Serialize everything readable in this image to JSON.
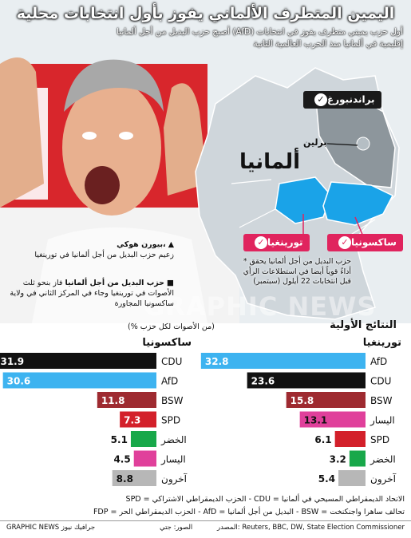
{
  "headline": "اليمين المتطرف الألماني يفوز بأول انتخابات محلية",
  "subhead": "أصبح حزب البديل من أجل ألمانيا (AfD) أول حزب يميني متطرف يفوز في انتخابات إقليمية في ألمانيا منذ الحرب العالمية الثانية",
  "map": {
    "brandenburg": "براندنبورغ",
    "berlin": "برلين",
    "germany": "ألمانيا",
    "thuringia": "تورينغيا",
    "saxony": "ساكسونيا",
    "colors": {
      "state": "#cfd6db",
      "brandenburg": "#8d969c",
      "thuringia": "#1aa3e8",
      "saxony": "#1aa3e8",
      "flag_red": "#e0245e"
    }
  },
  "legend": {
    "person_marker": "▲",
    "person_name": "بيورن هوكي،",
    "person_desc": "زعيم حزب البديل من أجل ألمانيا في تورينغيا",
    "party_marker": "■",
    "party_bold": "حزب البديل من أجل ألمانيا",
    "party_desc": " فاز بنحو ثلث الأصوات في تورينغيا وجاء في المركز الثاني في ولاية ساكسونيا المجاورة"
  },
  "note": "* حزب البديل من أجل ألمانيا يحقق أداءً قوياً أيضا في استطلاعات الرأي قبل انتخابات 22 أيلول (سبتمبر)",
  "watermark": "GRAPHIC NEWS",
  "results": {
    "title": "النتائج الأولية",
    "subtitle": "(% من الأصوات لكل حزب)"
  },
  "chart_data": [
    {
      "type": "bar",
      "title": "تورينغيا",
      "categories": [
        "AfD",
        "CDU",
        "BSW",
        "اليسار",
        "SPD",
        "الخضر",
        "آخرون"
      ],
      "values": [
        32.8,
        23.6,
        15.8,
        13.1,
        6.1,
        3.2,
        5.4
      ],
      "colors": [
        "#3db3f0",
        "#111111",
        "#9e2a30",
        "#e0409b",
        "#d3202a",
        "#18a84a",
        "#b7b7b7"
      ],
      "xlim": [
        0,
        35
      ]
    },
    {
      "type": "bar",
      "title": "ساكسونيا",
      "categories": [
        "CDU",
        "AfD",
        "BSW",
        "SPD",
        "الخضر",
        "اليسار",
        "آخرون"
      ],
      "values": [
        31.9,
        30.6,
        11.8,
        7.3,
        5.1,
        4.5,
        8.8
      ],
      "colors": [
        "#111111",
        "#3db3f0",
        "#9e2a30",
        "#d3202a",
        "#18a84a",
        "#e0409b",
        "#b7b7b7"
      ],
      "xlim": [
        0,
        35
      ]
    }
  ],
  "footer": {
    "line1": "SPD = الحزب الديمقراطي الاشتراكي - CDU = الاتحاد الديمقراطي المسيحي في ألمانيا",
    "line2": "FDP = الحزب الديمقراطي الحر - AfD = البديل من أجل ألمانيا - BSW = تحالف ساهرا واجنكنخت",
    "source": "المصدر: Reuters, BBC, DW, State Election Commissioner",
    "photo": "الصور: جتي",
    "brand": "GRAPHIC NEWS جرافيك نيوز"
  }
}
